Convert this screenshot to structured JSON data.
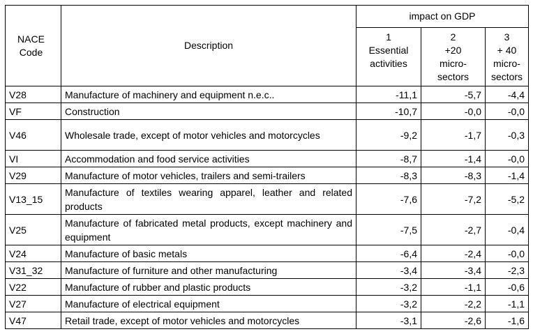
{
  "header": {
    "code_label": "NACE Code",
    "description_label": "Description",
    "group_label": "impact on GDP",
    "scenarios": [
      {
        "num": "1",
        "line1": "Essential",
        "line2": "activities",
        "line3": ""
      },
      {
        "num": "2",
        "line1": "+20",
        "line2": "micro-",
        "line3": "sectors"
      },
      {
        "num": "3",
        "line1": "+ 40",
        "line2": "micro-",
        "line3": "sectors"
      }
    ]
  },
  "rows": [
    {
      "code": "V28",
      "description": "Manufacture of machinery and equipment n.e.c..",
      "s1": "-11,1",
      "s2": "-5,7",
      "s3": "-4,4"
    },
    {
      "code": "VF",
      "description": "Construction",
      "s1": "-10,7",
      "s2": "-0,0",
      "s3": "-0,0"
    },
    {
      "code": "V46",
      "description": "Wholesale trade, except of motor vehicles and motorcycles",
      "s1": "-9,2",
      "s2": "-1,7",
      "s3": "-0,3"
    },
    {
      "code": "VI",
      "description": "Accommodation and food service activities",
      "s1": "-8,7",
      "s2": "-1,4",
      "s3": "-0,0"
    },
    {
      "code": "V29",
      "description": "Manufacture of motor vehicles, trailers and semi-trailers",
      "s1": "-8,3",
      "s2": "-8,3",
      "s3": "-1,4"
    },
    {
      "code": "V13_15",
      "description": "Manufacture of textiles wearing apparel, leather and related products",
      "s1": "-7,6",
      "s2": "-7,2",
      "s3": "-5,2"
    },
    {
      "code": "V25",
      "description": "Manufacture of fabricated metal products, except machinery and equipment",
      "s1": "-7,5",
      "s2": "-2,7",
      "s3": "-0,4"
    },
    {
      "code": "V24",
      "description": "Manufacture of basic metals",
      "s1": "-6,4",
      "s2": "-2,4",
      "s3": "-0,0"
    },
    {
      "code": "V31_32",
      "description": "Manufacture of furniture and other manufacturing",
      "s1": "-3,4",
      "s2": "-3,4",
      "s3": "-2,3"
    },
    {
      "code": "V22",
      "description": "Manufacture of rubber and plastic products",
      "s1": "-3,2",
      "s2": "-1,1",
      "s3": "-0,6"
    },
    {
      "code": "V27",
      "description": "Manufacture of electrical equipment",
      "s1": "-3,2",
      "s2": "-2,2",
      "s3": "-1,1"
    },
    {
      "code": "V47",
      "description": "Retail trade, except of motor vehicles and motorcycles",
      "s1": "-3,1",
      "s2": "-2,6",
      "s3": "-1,6"
    }
  ]
}
